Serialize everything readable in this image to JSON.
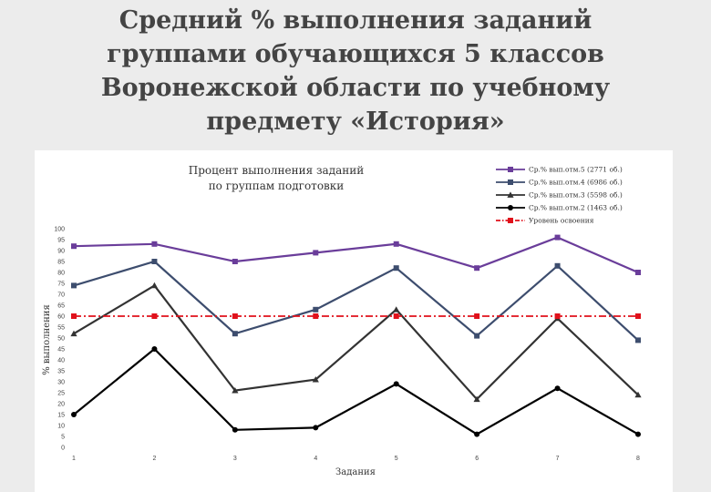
{
  "slide": {
    "title": "Средний % выполнения заданий группами обучающихся 5 классов Воронежской области по учебному предмету «История»"
  },
  "chart_data": {
    "type": "line",
    "title_lines": [
      "Процент выполнения заданий",
      "по группам подготовки"
    ],
    "xlabel": "Задания",
    "ylabel": "% выполнения",
    "x": [
      1,
      2,
      3,
      4,
      5,
      6,
      7,
      8
    ],
    "ylim": [
      0,
      100
    ],
    "ytick_step": 5,
    "grid": false,
    "legend_position": "top-right",
    "series": [
      {
        "name": "Ср.% вып.отм.5 (2771 об.)",
        "color": "#6a3d9a",
        "marker": "square",
        "dash": "none",
        "values": [
          92,
          93,
          85,
          89,
          93,
          82,
          96,
          80
        ]
      },
      {
        "name": "Ср.% вып.отм.4 (6986 об.)",
        "color": "#3d4d6e",
        "marker": "square",
        "dash": "none",
        "values": [
          74,
          85,
          52,
          63,
          82,
          51,
          83,
          49
        ]
      },
      {
        "name": "Ср.% вып.отм.3 (5598 об.)",
        "color": "#333333",
        "marker": "triangle",
        "dash": "none",
        "values": [
          52,
          74,
          26,
          31,
          63,
          22,
          59,
          24
        ]
      },
      {
        "name": "Ср.% вып.отм.2 (1463 об.)",
        "color": "#000000",
        "marker": "circle",
        "dash": "none",
        "values": [
          15,
          45,
          8,
          9,
          29,
          6,
          27,
          6
        ]
      },
      {
        "name": "Уровень освоения",
        "color": "#e0111b",
        "marker": "square",
        "dash": "dashdot",
        "values": [
          60,
          60,
          60,
          60,
          60,
          60,
          60,
          60
        ]
      }
    ]
  }
}
